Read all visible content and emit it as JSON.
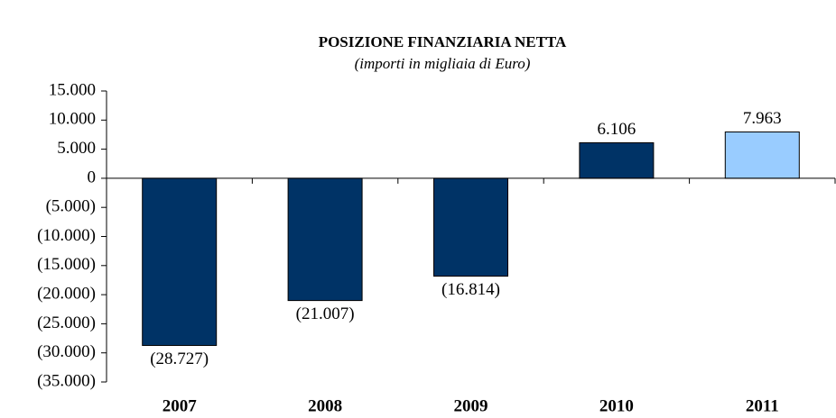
{
  "chart_data": {
    "type": "bar",
    "title": "POSIZIONE FINANZIARIA NETTA",
    "subtitle": "(importi in migliaia di Euro)",
    "categories": [
      "2007",
      "2008",
      "2009",
      "2010",
      "2011"
    ],
    "values": [
      -28727,
      -21007,
      -16814,
      6106,
      7963
    ],
    "value_labels": [
      "(28.727)",
      "(21.007)",
      "(16.814)",
      "6.106",
      "7.963"
    ],
    "colors": [
      "#003366",
      "#003366",
      "#003366",
      "#003366",
      "#99ccff"
    ],
    "ylim": [
      -35000,
      15000
    ],
    "yticks": [
      {
        "value": -35000,
        "label": "(35.000)"
      },
      {
        "value": -30000,
        "label": "(30.000)"
      },
      {
        "value": -25000,
        "label": "(25.000)"
      },
      {
        "value": -20000,
        "label": "(20.000)"
      },
      {
        "value": -15000,
        "label": "(15.000)"
      },
      {
        "value": -10000,
        "label": "(10.000)"
      },
      {
        "value": -5000,
        "label": "(5.000)"
      },
      0,
      {
        "value": 5000,
        "label": "5.000"
      },
      {
        "value": 10000,
        "label": "10.000"
      },
      {
        "value": 15000,
        "label": "15.000"
      }
    ],
    "grid": false
  }
}
